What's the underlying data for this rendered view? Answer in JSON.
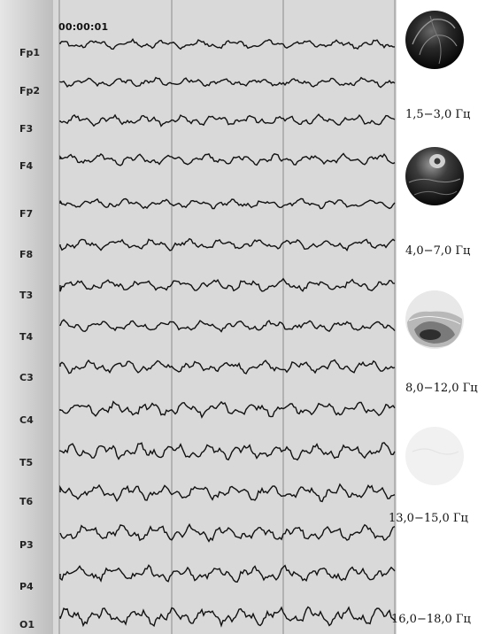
{
  "recording": {
    "timestamp": "00:00:01"
  },
  "channels": [
    {
      "id": "Fp1",
      "label": "Fp1"
    },
    {
      "id": "Fp2",
      "label": "Fp2"
    },
    {
      "id": "F3",
      "label": "F3"
    },
    {
      "id": "F4",
      "label": "F4"
    },
    {
      "id": "F7",
      "label": "F7"
    },
    {
      "id": "F8",
      "label": "F8"
    },
    {
      "id": "T3",
      "label": "T3"
    },
    {
      "id": "T4",
      "label": "T4"
    },
    {
      "id": "C3",
      "label": "C3"
    },
    {
      "id": "C4",
      "label": "C4"
    },
    {
      "id": "T5",
      "label": "T5"
    },
    {
      "id": "T6",
      "label": "T6"
    },
    {
      "id": "P3",
      "label": "P3"
    },
    {
      "id": "P4",
      "label": "P4"
    },
    {
      "id": "O1",
      "label": "O1"
    }
  ],
  "topomaps": [
    {
      "band": "1,5−3,0 Гц",
      "palette": "dark"
    },
    {
      "band": "4,0−7,0 Гц",
      "palette": "dark"
    },
    {
      "band": "8,0−12,0 Гц",
      "palette": "light-with-dark-spot"
    },
    {
      "band": "13,0−15,0 Гц",
      "palette": "very-faint"
    },
    {
      "band": "16,0−18,0 Гц",
      "palette": "none"
    }
  ],
  "colors": {
    "trace": "#111111",
    "background": "#d9d9d9",
    "grid": "#8a8a8a"
  }
}
